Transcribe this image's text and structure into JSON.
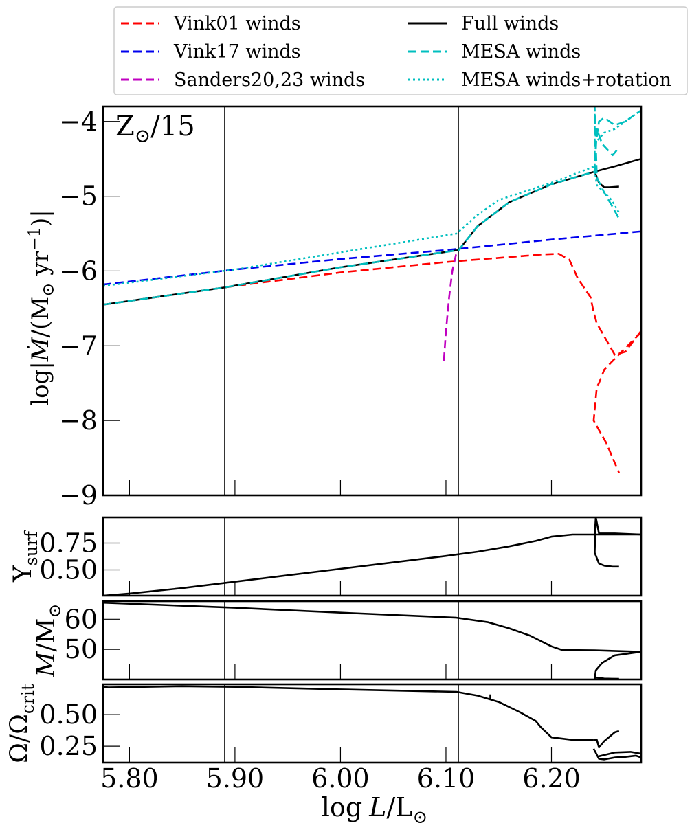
{
  "chart_data": [
    {
      "type": "line",
      "panel": "mdot",
      "annotation": "Z_⊙/15",
      "ylabel": "log|Ṁ/(M_⊙ yr⁻¹)|",
      "xlim": [
        5.775,
        6.285
      ],
      "ylim": [
        -9,
        -3.8
      ],
      "yticks": [
        -9,
        -8,
        -7,
        -6,
        -5,
        -4
      ],
      "ytick_labels": [
        "−9",
        "−8",
        "−7",
        "−6",
        "−5",
        "−4"
      ],
      "vlines": [
        5.89,
        6.112
      ],
      "series": [
        {
          "name": "Vink01 winds",
          "color": "#ff0000",
          "style": "dashed",
          "x": [
            5.775,
            5.9,
            6.0,
            6.1,
            6.19,
            6.207,
            6.217,
            6.225,
            6.237,
            6.24,
            6.243,
            6.26,
            6.27,
            6.285
          ],
          "y": [
            -6.45,
            -6.2,
            -6.02,
            -5.88,
            -5.78,
            -5.77,
            -5.85,
            -6.1,
            -6.35,
            -6.55,
            -6.7,
            -7.12,
            -7.08,
            -6.8
          ]
        },
        {
          "name": "Vink01 winds",
          "color": "#ff0000",
          "style": "dashed",
          "x": [
            6.285,
            6.265,
            6.25,
            6.245,
            6.243,
            6.24,
            6.252,
            6.264
          ],
          "y": [
            -6.82,
            -7.1,
            -7.32,
            -7.5,
            -7.55,
            -8.0,
            -8.3,
            -8.7
          ]
        },
        {
          "name": "Vink17 winds",
          "color": "#0000ee",
          "style": "dashed",
          "x": [
            5.775,
            5.9,
            6.0,
            6.1,
            6.2,
            6.285
          ],
          "y": [
            -6.18,
            -5.98,
            -5.84,
            -5.72,
            -5.58,
            -5.47
          ]
        },
        {
          "name": "Sanders20,23 winds",
          "color": "#c000c0",
          "style": "dashed",
          "x": [
            6.098,
            6.1,
            6.103,
            6.106,
            6.11
          ],
          "y": [
            -7.2,
            -6.8,
            -6.35,
            -6.0,
            -5.75
          ]
        },
        {
          "name": "Full winds",
          "color": "#000000",
          "style": "solid",
          "x": [
            5.775,
            5.89,
            6.0,
            6.112,
            6.13,
            6.16,
            6.2,
            6.241,
            6.26,
            6.285
          ],
          "y": [
            -6.45,
            -6.22,
            -5.95,
            -5.72,
            -5.4,
            -5.08,
            -4.84,
            -4.67,
            -4.6,
            -4.5
          ]
        },
        {
          "name": "Full winds",
          "color": "#000000",
          "style": "solid",
          "x": [
            6.241,
            6.245,
            6.25,
            6.255,
            6.264
          ],
          "y": [
            -4.67,
            -4.82,
            -4.88,
            -4.88,
            -4.87
          ]
        },
        {
          "name": "MESA winds",
          "color": "#00bfbf",
          "style": "dashed",
          "x": [
            5.775,
            5.89,
            6.0,
            6.112,
            6.13,
            6.16,
            6.2,
            6.241
          ],
          "y": [
            -6.45,
            -6.22,
            -5.95,
            -5.72,
            -5.4,
            -5.08,
            -4.84,
            -4.67
          ]
        },
        {
          "name": "MESA winds",
          "color": "#00bfbf",
          "style": "dashed",
          "x": [
            6.241,
            6.242,
            6.245,
            6.25,
            6.26,
            6.27,
            6.285
          ],
          "y": [
            -4.7,
            -4.3,
            -4.0,
            -3.95,
            -4.05,
            -4.0,
            -3.85
          ]
        },
        {
          "name": "MESA winds",
          "color": "#00bfbf",
          "style": "dashed",
          "x": [
            6.241,
            6.242,
            6.243,
            6.248,
            6.258,
            6.264
          ],
          "y": [
            -4.7,
            -4.4,
            -4.1,
            -4.3,
            -4.45,
            -4.35
          ]
        },
        {
          "name": "MESA winds",
          "color": "#00bfbf",
          "style": "dashed",
          "x": [
            6.241,
            6.241,
            6.243,
            6.25,
            6.257,
            6.264
          ],
          "y": [
            -4.67,
            -3.8,
            -4.75,
            -4.95,
            -5.12,
            -5.3
          ]
        },
        {
          "name": "MESA winds+rotation",
          "color": "#00bfbf",
          "style": "dotted",
          "x": [
            5.775,
            5.9,
            6.0,
            6.11,
            6.13,
            6.15,
            6.2,
            6.241
          ],
          "y": [
            -6.2,
            -5.98,
            -5.75,
            -5.5,
            -5.25,
            -5.05,
            -4.82,
            -4.6
          ]
        },
        {
          "name": "MESA winds+rotation",
          "color": "#00bfbf",
          "style": "dotted",
          "x": [
            6.241,
            6.243,
            6.25,
            6.257,
            6.264
          ],
          "y": [
            -4.65,
            -4.85,
            -4.95,
            -5.05,
            -5.22
          ]
        },
        {
          "name": "MESA winds+rotation",
          "color": "#00bfbf",
          "style": "dotted",
          "x": [
            6.241,
            6.25,
            6.26,
            6.27,
            6.285
          ],
          "y": [
            -4.3,
            -4.15,
            -4.1,
            -4.0,
            -3.85
          ]
        }
      ]
    },
    {
      "type": "line",
      "panel": "ysurf",
      "ylabel": "Y_surf",
      "xlim": [
        5.775,
        6.285
      ],
      "ylim": [
        0.26,
        0.99
      ],
      "yticks": [
        0.5,
        0.75
      ],
      "ytick_labels": [
        "0.50",
        "0.75"
      ],
      "series": [
        {
          "name": "",
          "color": "#000000",
          "style": "solid",
          "x": [
            5.775,
            5.8,
            5.85,
            5.9,
            5.95,
            6.0,
            6.05,
            6.1,
            6.13,
            6.16,
            6.185,
            6.2,
            6.22,
            6.241,
            6.285
          ],
          "y": [
            0.26,
            0.28,
            0.33,
            0.39,
            0.45,
            0.51,
            0.57,
            0.63,
            0.67,
            0.72,
            0.77,
            0.81,
            0.83,
            0.83,
            0.83
          ]
        },
        {
          "name": "",
          "color": "#000000",
          "style": "solid",
          "x": [
            6.241,
            6.242,
            6.241,
            6.245,
            6.25,
            6.258,
            6.264
          ],
          "y": [
            0.83,
            0.99,
            0.66,
            0.56,
            0.54,
            0.53,
            0.53
          ]
        },
        {
          "name": "",
          "color": "#000000",
          "style": "solid",
          "x": [
            6.242,
            6.245,
            6.26,
            6.285
          ],
          "y": [
            0.99,
            0.84,
            0.84,
            0.83
          ]
        }
      ]
    },
    {
      "type": "line",
      "panel": "mass",
      "ylabel": "M/M_⊙",
      "xlim": [
        5.775,
        6.285
      ],
      "ylim": [
        40,
        66
      ],
      "yticks": [
        50,
        60
      ],
      "ytick_labels": [
        "50",
        "60"
      ],
      "series": [
        {
          "name": "",
          "color": "#000000",
          "style": "solid",
          "x": [
            5.775,
            5.9,
            6.0,
            6.11,
            6.14,
            6.16,
            6.18,
            6.2,
            6.21,
            6.241,
            6.285
          ],
          "y": [
            65.5,
            63.8,
            62.2,
            60.5,
            59.0,
            57.0,
            54.5,
            51.0,
            49.8,
            49.7,
            49.2
          ]
        },
        {
          "name": "",
          "color": "#000000",
          "style": "solid",
          "x": [
            6.285,
            6.26,
            6.248,
            6.242,
            6.241
          ],
          "y": [
            49.2,
            48.0,
            45.5,
            43.0,
            40.0
          ]
        },
        {
          "name": "",
          "color": "#000000",
          "style": "solid",
          "x": [
            6.241,
            6.25,
            6.264
          ],
          "y": [
            40.7,
            40.3,
            40.2
          ]
        }
      ]
    },
    {
      "type": "line",
      "panel": "omega",
      "ylabel": "Ω/Ω_crit",
      "xlabel": "log L/L_⊙",
      "xlim": [
        5.775,
        6.285
      ],
      "ylim": [
        0.12,
        0.74
      ],
      "yticks": [
        0.25,
        0.5
      ],
      "ytick_labels": [
        "0.25",
        "0.50"
      ],
      "xticks": [
        5.8,
        5.9,
        6.0,
        6.1,
        6.2
      ],
      "xtick_labels": [
        "5.80",
        "5.90",
        "6.00",
        "6.10",
        "6.20"
      ],
      "series": [
        {
          "name": "",
          "color": "#000000",
          "style": "solid",
          "x": [
            5.775,
            5.78,
            5.85,
            5.9,
            6.0,
            6.11,
            6.13,
            6.15,
            6.17,
            6.185,
            6.19,
            6.2,
            6.22,
            6.24
          ],
          "y": [
            0.72,
            0.715,
            0.725,
            0.72,
            0.7,
            0.68,
            0.65,
            0.6,
            0.52,
            0.45,
            0.4,
            0.32,
            0.3,
            0.3
          ]
        },
        {
          "name": "",
          "color": "#000000",
          "style": "solid",
          "x": [
            6.142,
            6.142
          ],
          "y": [
            0.66,
            0.62
          ]
        },
        {
          "name": "",
          "color": "#000000",
          "style": "solid",
          "x": [
            6.24,
            6.243,
            6.245,
            6.25,
            6.26,
            6.264
          ],
          "y": [
            0.3,
            0.3,
            0.24,
            0.29,
            0.36,
            0.37
          ]
        },
        {
          "name": "",
          "color": "#000000",
          "style": "solid",
          "x": [
            6.24,
            6.245,
            6.25,
            6.26,
            6.27,
            6.28,
            6.285
          ],
          "y": [
            0.23,
            0.15,
            0.145,
            0.16,
            0.165,
            0.175,
            0.16
          ]
        },
        {
          "name": "",
          "color": "#000000",
          "style": "solid",
          "x": [
            6.245,
            6.26,
            6.275,
            6.285
          ],
          "y": [
            0.17,
            0.2,
            0.205,
            0.19
          ]
        }
      ]
    }
  ],
  "legend": {
    "placement": "top-outside",
    "columns": 2,
    "entries": [
      {
        "label": "Vink01 winds",
        "color": "#ff0000",
        "style": "dashed"
      },
      {
        "label": "Vink17 winds",
        "color": "#0000ee",
        "style": "dashed"
      },
      {
        "label": "Sanders20,23 winds",
        "color": "#c000c0",
        "style": "dashed"
      },
      {
        "label": "Full winds",
        "color": "#000000",
        "style": "solid"
      },
      {
        "label": "MESA winds",
        "color": "#00bfbf",
        "style": "dashed"
      },
      {
        "label": "MESA winds+rotation",
        "color": "#00bfbf",
        "style": "dotted"
      }
    ]
  }
}
